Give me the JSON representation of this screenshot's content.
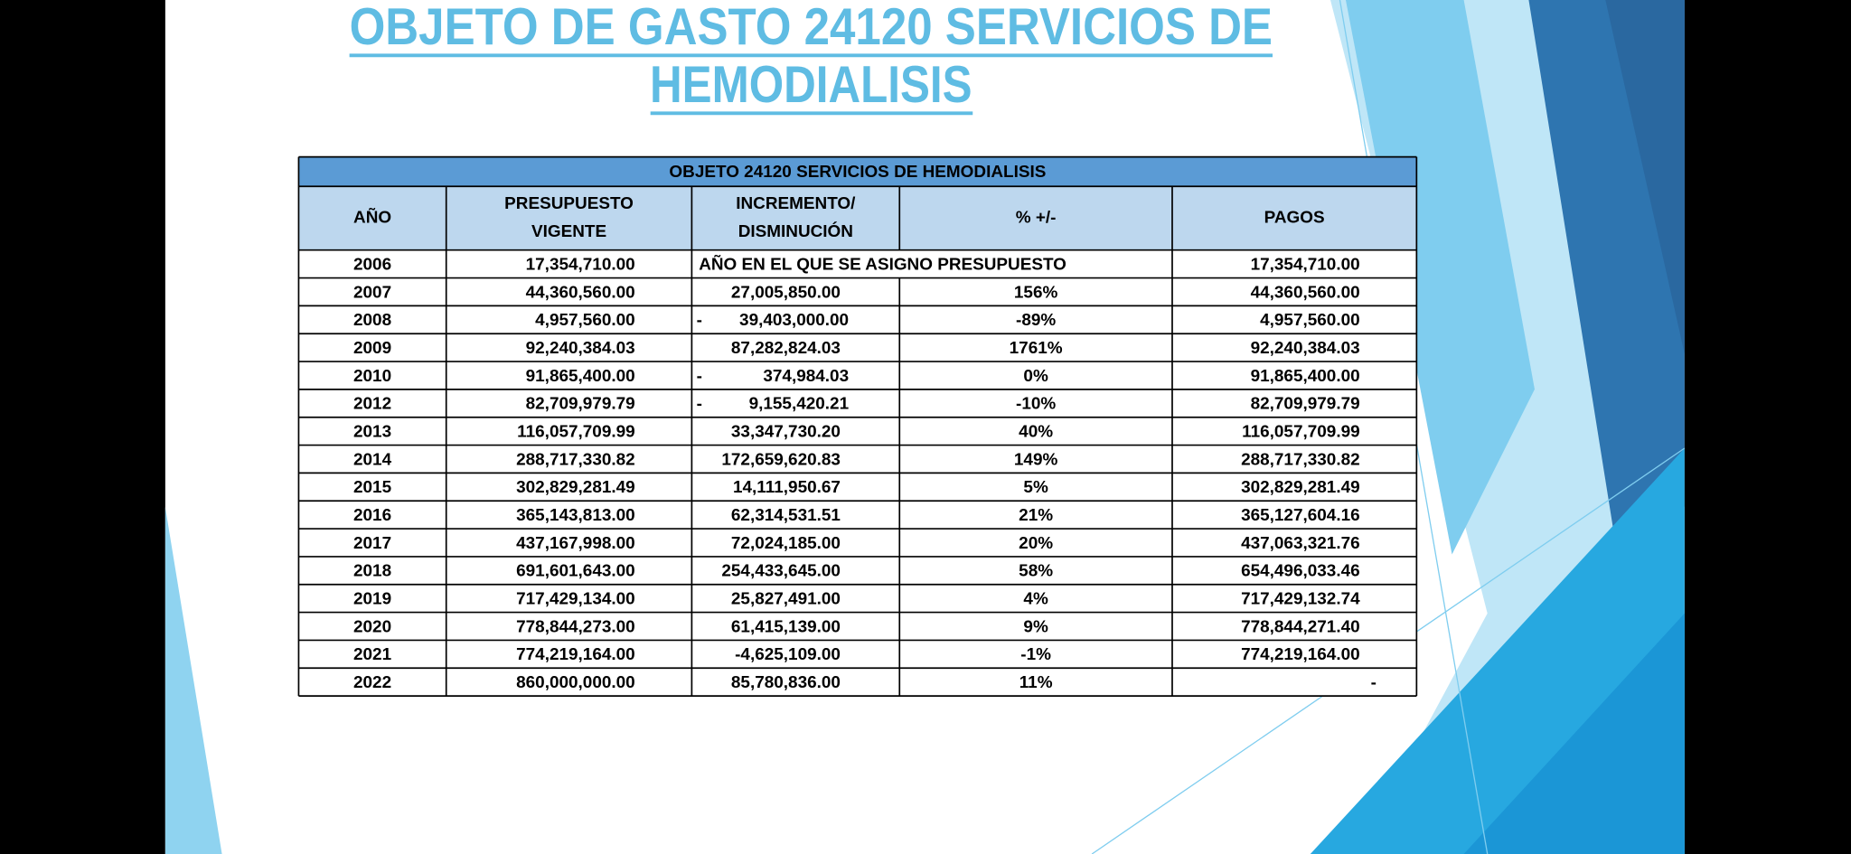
{
  "header": {
    "title": [
      "OBJETO DE GASTO 24120 SERVICIOS DE",
      "HEMODIALISIS"
    ]
  },
  "table": {
    "title": "OBJETO 24120 SERVICIOS DE HEMODIALISIS",
    "headers": [
      [
        "AÑO"
      ],
      [
        "PRESUPUESTO",
        "VIGENTE"
      ],
      [
        "INCREMENTO/",
        "DISMINUCIÓN"
      ],
      [
        "% +/-"
      ],
      [
        "PAGOS"
      ]
    ],
    "rows": [
      [
        "2006",
        "17,354,710.00",
        "AÑO EN EL QUE SE ASIGNO PRESUPUESTO",
        "17,354,710.00"
      ],
      [
        "2007",
        "44,360,560.00",
        "27,005,850.00",
        "156%",
        "44,360,560.00"
      ],
      [
        "2008",
        "4,957,560.00",
        [
          "-",
          "39,403,000.00"
        ],
        "-89%",
        "4,957,560.00"
      ],
      [
        "2009",
        "92,240,384.03",
        "87,282,824.03",
        "1761%",
        "92,240,384.03"
      ],
      [
        "2010",
        "91,865,400.00",
        [
          "-",
          "374,984.03"
        ],
        "0%",
        "91,865,400.00"
      ],
      [
        "2012",
        "82,709,979.79",
        [
          "-",
          "9,155,420.21"
        ],
        "-10%",
        "82,709,979.79"
      ],
      [
        "2013",
        "116,057,709.99",
        "33,347,730.20",
        "40%",
        "116,057,709.99"
      ],
      [
        "2014",
        "288,717,330.82",
        "172,659,620.83",
        "149%",
        "288,717,330.82"
      ],
      [
        "2015",
        "302,829,281.49",
        "14,111,950.67",
        "5%",
        "302,829,281.49"
      ],
      [
        "2016",
        "365,143,813.00",
        "62,314,531.51",
        "21%",
        "365,127,604.16"
      ],
      [
        "2017",
        "437,167,998.00",
        "72,024,185.00",
        "20%",
        "437,063,321.76"
      ],
      [
        "2018",
        "691,601,643.00",
        "254,433,645.00",
        "58%",
        "654,496,033.46"
      ],
      [
        "2019",
        "717,429,134.00",
        "25,827,491.00",
        "4%",
        "717,429,132.74"
      ],
      [
        "2020",
        "778,844,273.00",
        "61,415,139.00",
        "9%",
        "778,844,271.40"
      ],
      [
        "2021",
        "774,219,164.00",
        "-4,625,109.00",
        "-1%",
        "774,219,164.00"
      ],
      [
        "2022",
        "860,000,000.00",
        "85,780,836.00",
        "11%",
        "-"
      ]
    ]
  }
}
